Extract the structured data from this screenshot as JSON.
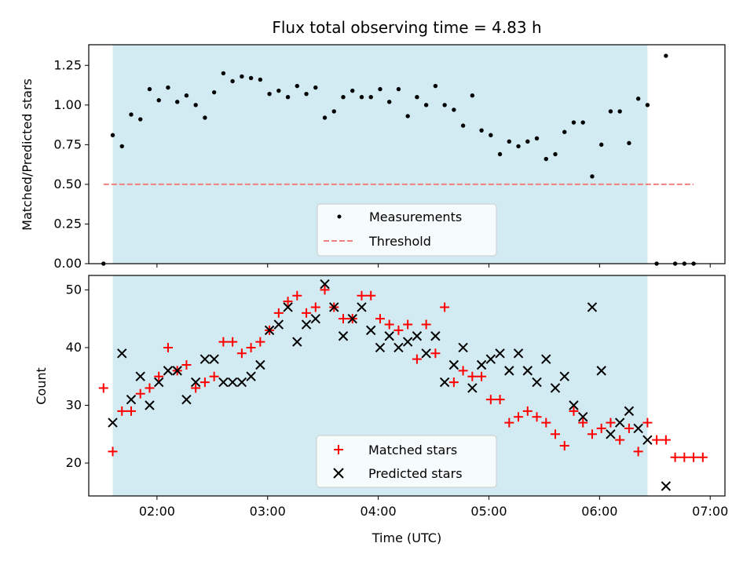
{
  "chart_data": [
    {
      "type": "scatter",
      "title": "Flux total observing time = 4.83 h",
      "ylabel": "Matched/Predicted stars",
      "xlabel": "",
      "xlim": [
        "01:23",
        "07:08"
      ],
      "ylim": [
        0,
        1.38
      ],
      "yticks": [
        "0.00",
        "0.25",
        "0.50",
        "0.75",
        "1.00",
        "1.25"
      ],
      "observing_window": [
        "01:36",
        "06:26"
      ],
      "window_color": "#add8e6",
      "legend": {
        "position": "lower center",
        "entries": [
          "Measurements",
          "Threshold"
        ]
      },
      "threshold": {
        "name": "Threshold",
        "y": 0.5,
        "x_range": [
          "01:31",
          "06:51"
        ],
        "color": "#f08080",
        "style": "dashed"
      },
      "series": [
        {
          "name": "Measurements",
          "marker": "dot",
          "color": "#000000",
          "points": [
            [
              "01:31",
              0.0
            ],
            [
              "01:36",
              0.81
            ],
            [
              "01:41",
              0.74
            ],
            [
              "01:46",
              0.94
            ],
            [
              "01:51",
              0.91
            ],
            [
              "01:56",
              1.1
            ],
            [
              "02:01",
              1.03
            ],
            [
              "02:06",
              1.11
            ],
            [
              "02:11",
              1.02
            ],
            [
              "02:16",
              1.06
            ],
            [
              "02:21",
              1.0
            ],
            [
              "02:26",
              0.92
            ],
            [
              "02:31",
              1.08
            ],
            [
              "02:36",
              1.2
            ],
            [
              "02:41",
              1.15
            ],
            [
              "02:46",
              1.18
            ],
            [
              "02:51",
              1.17
            ],
            [
              "02:56",
              1.16
            ],
            [
              "03:01",
              1.07
            ],
            [
              "03:06",
              1.09
            ],
            [
              "03:11",
              1.05
            ],
            [
              "03:16",
              1.12
            ],
            [
              "03:21",
              1.07
            ],
            [
              "03:26",
              1.11
            ],
            [
              "03:31",
              0.92
            ],
            [
              "03:36",
              0.96
            ],
            [
              "03:41",
              1.05
            ],
            [
              "03:46",
              1.09
            ],
            [
              "03:51",
              1.05
            ],
            [
              "03:56",
              1.05
            ],
            [
              "04:01",
              1.1
            ],
            [
              "04:06",
              1.02
            ],
            [
              "04:11",
              1.1
            ],
            [
              "04:16",
              0.93
            ],
            [
              "04:21",
              1.05
            ],
            [
              "04:26",
              1.0
            ],
            [
              "04:31",
              1.12
            ],
            [
              "04:36",
              1.0
            ],
            [
              "04:41",
              0.97
            ],
            [
              "04:46",
              0.87
            ],
            [
              "04:51",
              1.06
            ],
            [
              "04:56",
              0.84
            ],
            [
              "05:01",
              0.81
            ],
            [
              "05:06",
              0.69
            ],
            [
              "05:11",
              0.77
            ],
            [
              "05:16",
              0.74
            ],
            [
              "05:21",
              0.77
            ],
            [
              "05:26",
              0.79
            ],
            [
              "05:31",
              0.66
            ],
            [
              "05:36",
              0.69
            ],
            [
              "05:41",
              0.83
            ],
            [
              "05:46",
              0.89
            ],
            [
              "05:51",
              0.89
            ],
            [
              "05:56",
              0.55
            ],
            [
              "06:01",
              0.75
            ],
            [
              "06:06",
              0.96
            ],
            [
              "06:11",
              0.96
            ],
            [
              "06:16",
              0.76
            ],
            [
              "06:21",
              1.04
            ],
            [
              "06:26",
              1.0
            ],
            [
              "06:31",
              0.0
            ],
            [
              "06:36",
              1.31
            ],
            [
              "06:41",
              0.0
            ],
            [
              "06:46",
              0.0
            ],
            [
              "06:51",
              0.0
            ]
          ]
        }
      ]
    },
    {
      "type": "scatter",
      "title": "",
      "xlabel": "Time (UTC)",
      "ylabel": "Count",
      "xlim": [
        "01:23",
        "07:08"
      ],
      "ylim": [
        14.3,
        52.5
      ],
      "xticks": [
        "02:00",
        "03:00",
        "04:00",
        "05:00",
        "06:00",
        "07:00"
      ],
      "yticks": [
        "20",
        "30",
        "40",
        "50"
      ],
      "observing_window": [
        "01:36",
        "06:26"
      ],
      "window_color": "#add8e6",
      "legend": {
        "position": "lower center",
        "entries": [
          "Matched stars",
          "Predicted stars"
        ]
      },
      "series": [
        {
          "name": "Matched stars",
          "marker": "plus",
          "color": "#ff0000",
          "points": [
            [
              "01:31",
              33
            ],
            [
              "01:36",
              22
            ],
            [
              "01:41",
              29
            ],
            [
              "01:46",
              29
            ],
            [
              "01:51",
              32
            ],
            [
              "01:56",
              33
            ],
            [
              "02:01",
              35
            ],
            [
              "02:06",
              40
            ],
            [
              "02:11",
              36
            ],
            [
              "02:16",
              37
            ],
            [
              "02:21",
              33
            ],
            [
              "02:26",
              34
            ],
            [
              "02:31",
              35
            ],
            [
              "02:36",
              41
            ],
            [
              "02:41",
              41
            ],
            [
              "02:46",
              39
            ],
            [
              "02:51",
              40
            ],
            [
              "02:56",
              41
            ],
            [
              "03:01",
              43
            ],
            [
              "03:06",
              46
            ],
            [
              "03:11",
              48
            ],
            [
              "03:16",
              49
            ],
            [
              "03:21",
              46
            ],
            [
              "03:26",
              47
            ],
            [
              "03:31",
              50
            ],
            [
              "03:36",
              47
            ],
            [
              "03:41",
              45
            ],
            [
              "03:46",
              45
            ],
            [
              "03:51",
              49
            ],
            [
              "03:56",
              49
            ],
            [
              "04:01",
              45
            ],
            [
              "04:06",
              44
            ],
            [
              "04:11",
              43
            ],
            [
              "04:16",
              44
            ],
            [
              "04:21",
              38
            ],
            [
              "04:26",
              44
            ],
            [
              "04:31",
              39
            ],
            [
              "04:36",
              47
            ],
            [
              "04:41",
              34
            ],
            [
              "04:46",
              36
            ],
            [
              "04:51",
              35
            ],
            [
              "04:56",
              35
            ],
            [
              "05:01",
              31
            ],
            [
              "05:06",
              31
            ],
            [
              "05:11",
              27
            ],
            [
              "05:16",
              28
            ],
            [
              "05:21",
              29
            ],
            [
              "05:26",
              28
            ],
            [
              "05:31",
              27
            ],
            [
              "05:36",
              25
            ],
            [
              "05:41",
              23
            ],
            [
              "05:46",
              29
            ],
            [
              "05:51",
              27
            ],
            [
              "05:56",
              25
            ],
            [
              "06:01",
              26
            ],
            [
              "06:06",
              27
            ],
            [
              "06:11",
              24
            ],
            [
              "06:16",
              26
            ],
            [
              "06:21",
              22
            ],
            [
              "06:26",
              27
            ],
            [
              "06:31",
              24
            ],
            [
              "06:36",
              24
            ],
            [
              "06:41",
              21
            ],
            [
              "06:46",
              21
            ],
            [
              "06:51",
              21
            ],
            [
              "06:56",
              21
            ]
          ]
        },
        {
          "name": "Predicted stars",
          "marker": "x",
          "color": "#000000",
          "points": [
            [
              "01:36",
              27
            ],
            [
              "01:41",
              39
            ],
            [
              "01:46",
              31
            ],
            [
              "01:51",
              35
            ],
            [
              "01:56",
              30
            ],
            [
              "02:01",
              34
            ],
            [
              "02:06",
              36
            ],
            [
              "02:11",
              36
            ],
            [
              "02:16",
              31
            ],
            [
              "02:21",
              34
            ],
            [
              "02:26",
              38
            ],
            [
              "02:31",
              38
            ],
            [
              "02:36",
              34
            ],
            [
              "02:41",
              34
            ],
            [
              "02:46",
              34
            ],
            [
              "02:51",
              35
            ],
            [
              "02:56",
              37
            ],
            [
              "03:01",
              43
            ],
            [
              "03:06",
              44
            ],
            [
              "03:11",
              47
            ],
            [
              "03:16",
              41
            ],
            [
              "03:21",
              44
            ],
            [
              "03:26",
              45
            ],
            [
              "03:31",
              51
            ],
            [
              "03:36",
              47
            ],
            [
              "03:41",
              42
            ],
            [
              "03:46",
              45
            ],
            [
              "03:51",
              47
            ],
            [
              "03:56",
              43
            ],
            [
              "04:01",
              40
            ],
            [
              "04:06",
              42
            ],
            [
              "04:11",
              40
            ],
            [
              "04:16",
              41
            ],
            [
              "04:21",
              42
            ],
            [
              "04:26",
              39
            ],
            [
              "04:31",
              42
            ],
            [
              "04:36",
              34
            ],
            [
              "04:41",
              37
            ],
            [
              "04:46",
              40
            ],
            [
              "04:51",
              33
            ],
            [
              "04:56",
              37
            ],
            [
              "05:01",
              38
            ],
            [
              "05:06",
              39
            ],
            [
              "05:11",
              36
            ],
            [
              "05:16",
              39
            ],
            [
              "05:21",
              36
            ],
            [
              "05:26",
              34
            ],
            [
              "05:31",
              38
            ],
            [
              "05:36",
              33
            ],
            [
              "05:41",
              35
            ],
            [
              "05:46",
              30
            ],
            [
              "05:51",
              28
            ],
            [
              "05:56",
              47
            ],
            [
              "06:01",
              36
            ],
            [
              "06:06",
              25
            ],
            [
              "06:11",
              27
            ],
            [
              "06:16",
              29
            ],
            [
              "06:21",
              26
            ],
            [
              "06:26",
              24
            ],
            [
              "06:36",
              16
            ]
          ]
        }
      ]
    }
  ]
}
